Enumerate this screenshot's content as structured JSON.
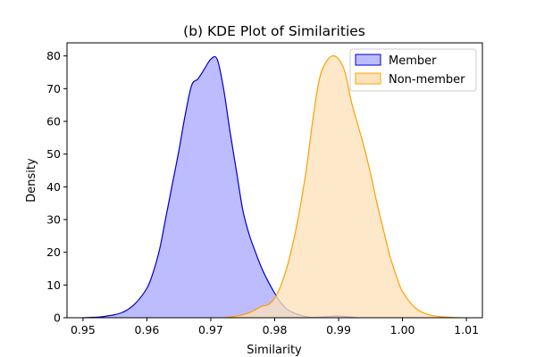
{
  "chart_data": {
    "type": "area",
    "title": "(b) KDE Plot of Similarities",
    "xlabel": "Similarity",
    "ylabel": "Density",
    "xlim": [
      0.9475,
      1.0125
    ],
    "ylim": [
      0,
      84
    ],
    "xticks": [
      0.95,
      0.96,
      0.97,
      0.98,
      0.99,
      1.0,
      1.01
    ],
    "xtick_labels": [
      "0.95",
      "0.96",
      "0.97",
      "0.98",
      "0.99",
      "1.00",
      "1.01"
    ],
    "yticks": [
      0,
      10,
      20,
      30,
      40,
      50,
      60,
      70,
      80
    ],
    "ytick_labels": [
      "0",
      "10",
      "20",
      "30",
      "40",
      "50",
      "60",
      "70",
      "80"
    ],
    "grid": false,
    "legend_position": "top-right",
    "series": [
      {
        "name": "Member",
        "color": "#0000cc",
        "fill": "#bcbcff",
        "x": [
          0.95,
          0.953,
          0.956,
          0.958,
          0.96,
          0.961,
          0.962,
          0.963,
          0.964,
          0.965,
          0.966,
          0.967,
          0.968,
          0.969,
          0.97,
          0.971,
          0.972,
          0.973,
          0.974,
          0.975,
          0.976,
          0.977,
          0.978,
          0.979,
          0.98,
          0.981,
          0.982,
          0.983,
          0.984,
          0.985,
          0.986,
          0.988,
          0.99,
          0.993
        ],
        "y": [
          0,
          0.3,
          1.5,
          4,
          9,
          14,
          21,
          31,
          41,
          51,
          62,
          71,
          73,
          76,
          79,
          79,
          70,
          57,
          45,
          33,
          25.5,
          20,
          15,
          11,
          7.5,
          4.5,
          2.5,
          1.5,
          0.8,
          0.3,
          0.1,
          0.3,
          0.5,
          0
        ]
      },
      {
        "name": "Non-member",
        "color": "#ff9f00",
        "fill": "#fde3bb",
        "x": [
          0.972,
          0.974,
          0.976,
          0.977,
          0.978,
          0.979,
          0.98,
          0.981,
          0.982,
          0.983,
          0.984,
          0.985,
          0.986,
          0.987,
          0.988,
          0.989,
          0.99,
          0.991,
          0.992,
          0.993,
          0.994,
          0.995,
          0.996,
          0.997,
          0.998,
          0.999,
          1.0,
          1.002,
          1.004,
          1.006,
          1.009
        ],
        "y": [
          0,
          0.5,
          1.5,
          2.5,
          3.5,
          4,
          6,
          10,
          16,
          24,
          34,
          46,
          61,
          73,
          78,
          80,
          79,
          75,
          66,
          59,
          52,
          44,
          35,
          27,
          19,
          13,
          8,
          3,
          1,
          0.3,
          0
        ]
      }
    ]
  }
}
